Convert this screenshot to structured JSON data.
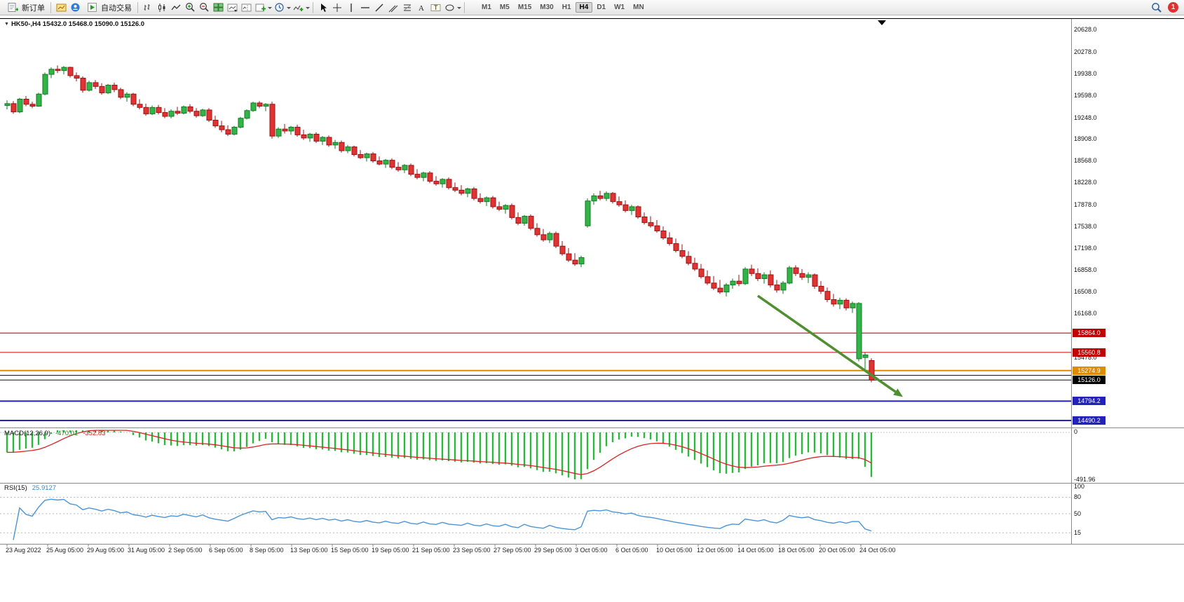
{
  "toolbar": {
    "new_order_label": "新订单",
    "autotrade_label": "自动交易",
    "timeframes": [
      "M1",
      "M5",
      "M15",
      "M30",
      "H1",
      "H4",
      "D1",
      "W1",
      "MN"
    ],
    "active_timeframe": "H4",
    "notification_count": "1"
  },
  "chart": {
    "collapse_glyph": "▼",
    "title": "HK50-,H4 15432.0 15468.0 15090.0 15126.0"
  },
  "chart_data": {
    "type": "candlestick",
    "symbol": "HK50-",
    "period": "H4",
    "last_ohlc": {
      "open": 15432.0,
      "high": 15468.0,
      "low": 15090.0,
      "close": 15126.0
    },
    "price_range": [
      14380,
      20790
    ],
    "price_axis_labels": [
      "20628.0",
      "20278.0",
      "19938.0",
      "19598.0",
      "19248.0",
      "18908.0",
      "18568.0",
      "18228.0",
      "17878.0",
      "17538.0",
      "17198.0",
      "16858.0",
      "16508.0",
      "16168.0",
      "15478.0"
    ],
    "price_badges": [
      {
        "text": "15864.0",
        "price": 15864.0,
        "bg": "#c00000"
      },
      {
        "text": "15560.8",
        "price": 15560.8,
        "bg": "#c00000"
      },
      {
        "text": "15274.9",
        "price": 15274.9,
        "bg": "#e08a00"
      },
      {
        "text": "15126.0",
        "price": 15126.0,
        "bg": "#000000"
      },
      {
        "text": "14794.2",
        "price": 14794.2,
        "bg": "#2222b8"
      },
      {
        "text": "14490.2",
        "price": 14490.2,
        "bg": "#2222b8"
      }
    ],
    "hlines": [
      {
        "price": 15864.0,
        "color": "#cc2222",
        "w": 1.2
      },
      {
        "price": 15560.8,
        "color": "#cc2222",
        "w": 1.2
      },
      {
        "price": 15274.9,
        "color": "#e08a00",
        "w": 2
      },
      {
        "price": 15200.0,
        "color": "#222222",
        "w": 1.2
      },
      {
        "price": 15126.0,
        "color": "#111111",
        "w": 1
      },
      {
        "price": 14794.2,
        "color": "#2222b8",
        "w": 2
      },
      {
        "price": 14490.2,
        "color": "#2222b8",
        "w": 2
      }
    ],
    "arrow": {
      "from_bar": 119,
      "from_price": 16450,
      "to_bar": 142,
      "to_price": 14860,
      "width": 3.5
    },
    "colors": {
      "up": "#33b449",
      "up_stroke": "#117a22",
      "down": "#e03333",
      "down_stroke": "#9c1111",
      "macd_hist": "#2db83d",
      "macd_signal": "#dd2222",
      "rsi_line": "#4a94d8",
      "arrow": "#4e8f2f"
    },
    "candles": [
      [
        19440,
        19520,
        19380,
        19470
      ],
      [
        19470,
        19510,
        19310,
        19340
      ],
      [
        19340,
        19560,
        19320,
        19540
      ],
      [
        19540,
        19590,
        19430,
        19460
      ],
      [
        19460,
        19500,
        19400,
        19430
      ],
      [
        19430,
        19640,
        19420,
        19620
      ],
      [
        19620,
        19960,
        19600,
        19930
      ],
      [
        19930,
        20040,
        19870,
        20010
      ],
      [
        20010,
        20070,
        19950,
        19990
      ],
      [
        19990,
        20060,
        19930,
        20040
      ],
      [
        20040,
        20050,
        19880,
        19910
      ],
      [
        19910,
        19960,
        19820,
        19870
      ],
      [
        19870,
        19900,
        19640,
        19680
      ],
      [
        19680,
        19830,
        19660,
        19800
      ],
      [
        19800,
        19840,
        19700,
        19740
      ],
      [
        19740,
        19790,
        19610,
        19640
      ],
      [
        19640,
        19780,
        19620,
        19760
      ],
      [
        19760,
        19800,
        19650,
        19690
      ],
      [
        19690,
        19720,
        19540,
        19570
      ],
      [
        19570,
        19650,
        19500,
        19620
      ],
      [
        19620,
        19640,
        19430,
        19460
      ],
      [
        19460,
        19540,
        19380,
        19410
      ],
      [
        19410,
        19470,
        19280,
        19310
      ],
      [
        19310,
        19440,
        19290,
        19410
      ],
      [
        19410,
        19450,
        19300,
        19330
      ],
      [
        19330,
        19400,
        19240,
        19270
      ],
      [
        19270,
        19380,
        19240,
        19350
      ],
      [
        19350,
        19420,
        19290,
        19320
      ],
      [
        19320,
        19440,
        19300,
        19420
      ],
      [
        19420,
        19460,
        19320,
        19350
      ],
      [
        19350,
        19400,
        19250,
        19280
      ],
      [
        19280,
        19390,
        19260,
        19370
      ],
      [
        19370,
        19400,
        19180,
        19210
      ],
      [
        19210,
        19280,
        19090,
        19120
      ],
      [
        19120,
        19200,
        19020,
        19060
      ],
      [
        19060,
        19130,
        18960,
        18990
      ],
      [
        18990,
        19120,
        18970,
        19100
      ],
      [
        19100,
        19260,
        19080,
        19240
      ],
      [
        19240,
        19380,
        19220,
        19360
      ],
      [
        19360,
        19500,
        19340,
        19480
      ],
      [
        19480,
        19510,
        19400,
        19430
      ],
      [
        19430,
        19480,
        19350,
        19460
      ],
      [
        19460,
        19500,
        18920,
        18960
      ],
      [
        18960,
        19100,
        18930,
        19070
      ],
      [
        19070,
        19150,
        19000,
        19040
      ],
      [
        19040,
        19120,
        18980,
        19100
      ],
      [
        19100,
        19140,
        18950,
        18980
      ],
      [
        18980,
        19060,
        18900,
        18930
      ],
      [
        18930,
        19010,
        18870,
        18990
      ],
      [
        18990,
        19020,
        18850,
        18880
      ],
      [
        18880,
        18960,
        18820,
        18940
      ],
      [
        18940,
        18970,
        18790,
        18820
      ],
      [
        18820,
        18900,
        18760,
        18860
      ],
      [
        18860,
        18890,
        18700,
        18730
      ],
      [
        18730,
        18820,
        18690,
        18790
      ],
      [
        18790,
        18810,
        18640,
        18670
      ],
      [
        18670,
        18740,
        18600,
        18620
      ],
      [
        18620,
        18700,
        18560,
        18680
      ],
      [
        18680,
        18710,
        18540,
        18570
      ],
      [
        18570,
        18640,
        18500,
        18520
      ],
      [
        18520,
        18600,
        18460,
        18580
      ],
      [
        18580,
        18610,
        18440,
        18470
      ],
      [
        18470,
        18550,
        18400,
        18430
      ],
      [
        18430,
        18520,
        18380,
        18500
      ],
      [
        18500,
        18530,
        18330,
        18360
      ],
      [
        18360,
        18440,
        18280,
        18310
      ],
      [
        18310,
        18400,
        18250,
        18380
      ],
      [
        18380,
        18410,
        18220,
        18250
      ],
      [
        18250,
        18330,
        18180,
        18210
      ],
      [
        18210,
        18300,
        18150,
        18280
      ],
      [
        18280,
        18310,
        18120,
        18150
      ],
      [
        18150,
        18230,
        18080,
        18110
      ],
      [
        18110,
        18190,
        18030,
        18060
      ],
      [
        18060,
        18150,
        18000,
        18130
      ],
      [
        18130,
        18160,
        17950,
        17980
      ],
      [
        17980,
        18060,
        17900,
        17930
      ],
      [
        17930,
        18010,
        17860,
        17990
      ],
      [
        17990,
        18020,
        17820,
        17850
      ],
      [
        17850,
        17930,
        17780,
        17810
      ],
      [
        17810,
        17890,
        17740,
        17870
      ],
      [
        17870,
        17900,
        17650,
        17680
      ],
      [
        17680,
        17760,
        17560,
        17590
      ],
      [
        17590,
        17720,
        17550,
        17700
      ],
      [
        17700,
        17730,
        17480,
        17510
      ],
      [
        17510,
        17590,
        17380,
        17410
      ],
      [
        17410,
        17500,
        17300,
        17330
      ],
      [
        17330,
        17460,
        17280,
        17430
      ],
      [
        17430,
        17460,
        17200,
        17230
      ],
      [
        17230,
        17310,
        17080,
        17110
      ],
      [
        17110,
        17200,
        16980,
        17010
      ],
      [
        17010,
        17120,
        16920,
        16950
      ],
      [
        16950,
        17080,
        16900,
        17050
      ],
      [
        17550,
        17980,
        17520,
        17940
      ],
      [
        17940,
        18060,
        17880,
        18020
      ],
      [
        18020,
        18100,
        17950,
        17980
      ],
      [
        17980,
        18090,
        17940,
        18060
      ],
      [
        18060,
        18080,
        17900,
        17930
      ],
      [
        17930,
        18010,
        17850,
        17880
      ],
      [
        17880,
        17950,
        17760,
        17790
      ],
      [
        17790,
        17880,
        17720,
        17850
      ],
      [
        17850,
        17870,
        17660,
        17690
      ],
      [
        17690,
        17760,
        17570,
        17600
      ],
      [
        17600,
        17700,
        17520,
        17550
      ],
      [
        17550,
        17640,
        17440,
        17470
      ],
      [
        17470,
        17540,
        17330,
        17360
      ],
      [
        17360,
        17450,
        17240,
        17270
      ],
      [
        17270,
        17350,
        17130,
        17160
      ],
      [
        17160,
        17260,
        17040,
        17070
      ],
      [
        17070,
        17150,
        16930,
        16960
      ],
      [
        16960,
        17050,
        16840,
        16870
      ],
      [
        16870,
        16950,
        16720,
        16750
      ],
      [
        16750,
        16850,
        16620,
        16650
      ],
      [
        16650,
        16760,
        16540,
        16570
      ],
      [
        16570,
        16700,
        16480,
        16510
      ],
      [
        16510,
        16650,
        16440,
        16620
      ],
      [
        16620,
        16720,
        16560,
        16680
      ],
      [
        16680,
        16780,
        16600,
        16640
      ],
      [
        16640,
        16900,
        16620,
        16870
      ],
      [
        16870,
        16940,
        16760,
        16800
      ],
      [
        16800,
        16880,
        16680,
        16720
      ],
      [
        16720,
        16820,
        16640,
        16780
      ],
      [
        16780,
        16850,
        16580,
        16620
      ],
      [
        16620,
        16700,
        16500,
        16540
      ],
      [
        16540,
        16680,
        16480,
        16650
      ],
      [
        16650,
        16920,
        16630,
        16890
      ],
      [
        16890,
        16930,
        16760,
        16800
      ],
      [
        16800,
        16870,
        16700,
        16740
      ],
      [
        16740,
        16820,
        16650,
        16780
      ],
      [
        16780,
        16800,
        16560,
        16600
      ],
      [
        16600,
        16680,
        16480,
        16520
      ],
      [
        16520,
        16580,
        16350,
        16390
      ],
      [
        16390,
        16480,
        16280,
        16320
      ],
      [
        16320,
        16420,
        16240,
        16380
      ],
      [
        16380,
        16410,
        16220,
        16260
      ],
      [
        16260,
        16360,
        16180,
        16330
      ],
      [
        15460,
        16350,
        15420,
        16330
      ],
      [
        15480,
        15560,
        15290,
        15520
      ],
      [
        15432,
        15468,
        15090,
        15126
      ]
    ],
    "time_labels": [
      "23 Aug 2022",
      "25 Aug 05:00",
      "29 Aug 05:00",
      "31 Aug 05:00",
      "2 Sep 05:00",
      "6 Sep 05:00",
      "8 Sep 05:00",
      "13 Sep 05:00",
      "15 Sep 05:00",
      "19 Sep 05:00",
      "21 Sep 05:00",
      "23 Sep 05:00",
      "27 Sep 05:00",
      "29 Sep 05:00",
      "3 Oct 05:00",
      "6 Oct 05:00",
      "10 Oct 05:00",
      "12 Oct 05:00",
      "14 Oct 05:00",
      "18 Oct 05:00",
      "20 Oct 05:00",
      "24 Oct 05:00"
    ],
    "macd": {
      "name": "MACD(12,26,9)",
      "value": "-470.01",
      "signal": "-352.83",
      "params": [
        12,
        26,
        9
      ],
      "axis_max": "0",
      "axis_min": "-491.96"
    },
    "rsi": {
      "name": "RSI(15)",
      "value": "25.9127",
      "period": 15,
      "axis": [
        {
          "t": "100",
          "v": 100
        },
        {
          "t": "80",
          "v": 80
        },
        {
          "t": "50",
          "v": 50
        },
        {
          "t": "15",
          "v": 15
        }
      ],
      "levels": [
        80,
        50,
        15
      ]
    }
  }
}
